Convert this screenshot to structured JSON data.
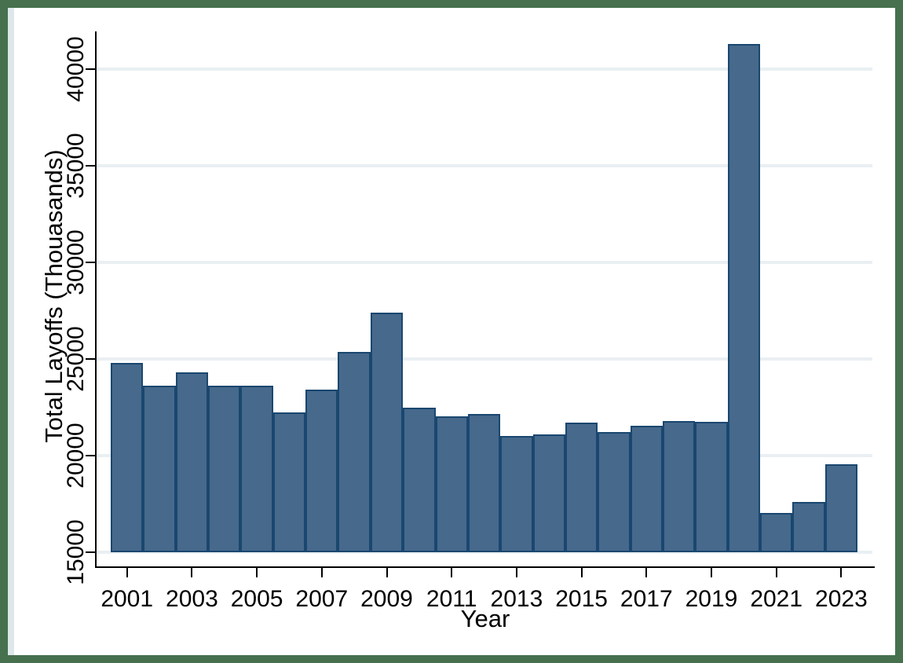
{
  "chart_data": {
    "type": "bar",
    "title": "",
    "xlabel": "Year",
    "ylabel": "Total Layoffs (Thouasands)",
    "categories": [
      2001,
      2002,
      2003,
      2004,
      2005,
      2006,
      2007,
      2008,
      2009,
      2010,
      2011,
      2012,
      2013,
      2014,
      2015,
      2016,
      2017,
      2018,
      2019,
      2020,
      2021,
      2022,
      2023
    ],
    "values": [
      24800,
      23600,
      24300,
      23600,
      23600,
      22250,
      23400,
      25350,
      27400,
      22500,
      22050,
      22150,
      21000,
      21100,
      21700,
      21200,
      21550,
      21800,
      21750,
      41300,
      17050,
      17600,
      19550
    ],
    "ylim": [
      15000,
      41950
    ],
    "y_ticks": [
      15000,
      20000,
      25000,
      30000,
      35000,
      40000
    ],
    "y_tick_labels": [
      "15000",
      "20000",
      "25000",
      "30000",
      "35000",
      "40000"
    ],
    "x_tick_labels": [
      "2001",
      "2003",
      "2005",
      "2007",
      "2009",
      "2011",
      "2013",
      "2015",
      "2017",
      "2019",
      "2021",
      "2023"
    ],
    "grid": true,
    "bar_gap": 0,
    "legend_position": "none",
    "colors": {
      "bar_fill": "#46698c",
      "bar_border": "#1a476f",
      "gridline": "#e9eff2",
      "axis": "#000000",
      "text": "#000000",
      "frame_border": "#47704e",
      "right_strip": "#dde8ea"
    }
  }
}
